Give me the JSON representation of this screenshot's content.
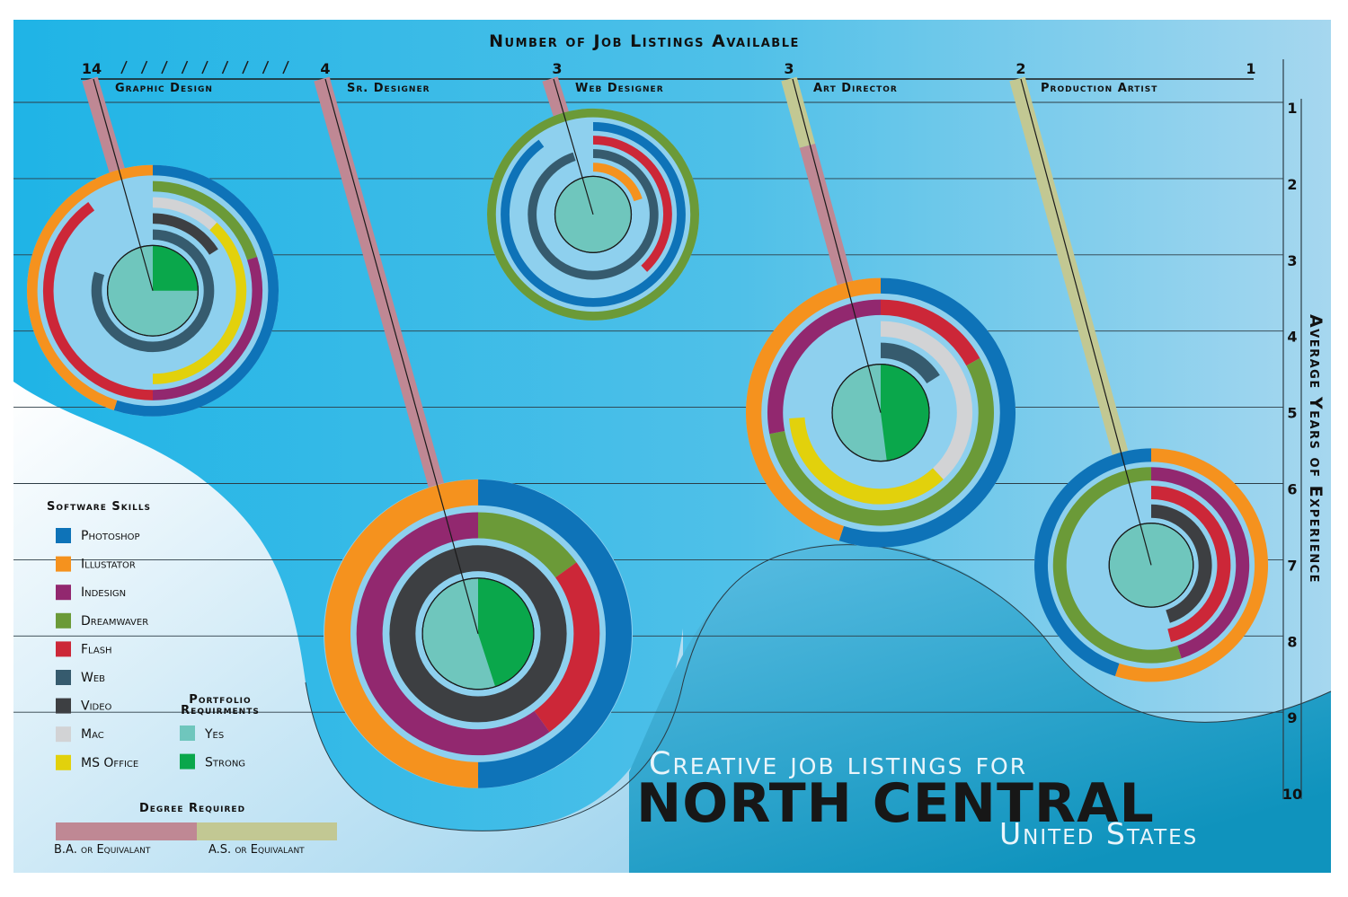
{
  "title": {
    "line1": "Creative job listings for",
    "line2": "NORTH CENTRAL",
    "line3": "United States"
  },
  "top_axis": {
    "label": "Number of Job Listings Available",
    "ticks": [
      "14",
      "4",
      "3",
      "3",
      "2",
      "1"
    ]
  },
  "right_axis": {
    "label": "Average Years of Experience",
    "ticks": [
      "1",
      "2",
      "3",
      "4",
      "5",
      "6",
      "7",
      "8",
      "9",
      "10"
    ]
  },
  "legend": {
    "software_title": "Software Skills",
    "software": [
      {
        "key": "photoshop",
        "label": "Photoshop",
        "color": "#0e73b8"
      },
      {
        "key": "illustrator",
        "label": "Illustator",
        "color": "#f5921e"
      },
      {
        "key": "indesign",
        "label": "Indesign",
        "color": "#92286f"
      },
      {
        "key": "dreamweaver",
        "label": "Dreamwaver",
        "color": "#6b9a38"
      },
      {
        "key": "flash",
        "label": "Flash",
        "color": "#cc2738"
      },
      {
        "key": "web",
        "label": "Web",
        "color": "#365b6e"
      },
      {
        "key": "video",
        "label": "Video",
        "color": "#3d3f42"
      },
      {
        "key": "mac",
        "label": "Mac",
        "color": "#d2d3d5"
      },
      {
        "key": "msoffice",
        "label": "MS Office",
        "color": "#e2d10c"
      }
    ],
    "portfolio_title_1": "Portfolio",
    "portfolio_title_2": "Requirments",
    "portfolio": [
      {
        "key": "yes",
        "label": "Yes",
        "color": "#6fc6bd"
      },
      {
        "key": "strong",
        "label": "Strong",
        "color": "#0aa74b"
      }
    ],
    "degree_title": "Degree Required",
    "degree": [
      {
        "key": "ba",
        "label": "B.A. or Equivalant",
        "color": "#bf8894"
      },
      {
        "key": "as",
        "label": "A.S. or Equivalant",
        "color": "#c2c893"
      }
    ]
  },
  "chart_data": {
    "type": "radial-bar",
    "title": "Creative job listings for NORTH CENTRAL United States",
    "xlabel": "Number of Job Listings Available",
    "ylabel": "Average Years of Experience",
    "ylim": [
      1,
      10
    ],
    "jobs": [
      {
        "name": "Graphic Design",
        "listings": 14,
        "avg_years_experience": 3.4,
        "degree": [
          {
            "type": "ba",
            "share": 0.45
          },
          {
            "type": "as",
            "share": 0.55
          }
        ],
        "portfolio": {
          "yes": 0.75,
          "strong": 0.25
        },
        "rings": [
          [
            {
              "skill": "photoshop",
              "share": 0.55
            },
            {
              "skill": "illustrator",
              "share": 0.45
            }
          ],
          [
            {
              "skill": "dreamweaver",
              "share": 0.2
            },
            {
              "skill": "indesign",
              "share": 0.3
            },
            {
              "skill": "flash",
              "share": 0.4
            }
          ],
          [
            {
              "skill": "mac",
              "share": 0.12
            },
            {
              "skill": "msoffice",
              "share": 0.38
            }
          ],
          [
            {
              "skill": "video",
              "share": 0.16
            }
          ],
          [
            {
              "skill": "web",
              "share": 0.8
            }
          ]
        ]
      },
      {
        "name": "Sr. Designer",
        "listings": 4,
        "avg_years_experience": 7.9,
        "degree": [
          {
            "type": "ba",
            "share": 1.0
          }
        ],
        "portfolio": {
          "yes": 0.55,
          "strong": 0.45
        },
        "rings": [
          [
            {
              "skill": "photoshop",
              "share": 0.5
            },
            {
              "skill": "illustrator",
              "share": 0.5
            }
          ],
          [
            {
              "skill": "dreamweaver",
              "share": 0.15
            },
            {
              "skill": "flash",
              "share": 0.25
            },
            {
              "skill": "indesign",
              "share": 0.6
            }
          ],
          [
            {
              "skill": "video",
              "share": 1.0
            }
          ]
        ]
      },
      {
        "name": "Web Designer",
        "listings": 3,
        "avg_years_experience": 2.4,
        "degree": [
          {
            "type": "ba",
            "share": 0.4
          },
          {
            "type": "as",
            "share": 0.6
          }
        ],
        "portfolio": {
          "yes": 1.0,
          "strong": 0
        },
        "rings": [
          [
            {
              "skill": "dreamweaver",
              "share": 1.0
            }
          ],
          [
            {
              "skill": "photoshop",
              "share": 0.9
            }
          ],
          [
            {
              "skill": "flash",
              "share": 0.38
            }
          ],
          [
            {
              "skill": "web",
              "share": 0.95
            }
          ],
          [
            {
              "skill": "illustrator",
              "share": 0.2
            }
          ]
        ]
      },
      {
        "name": "Art Director",
        "listings": 3,
        "avg_years_experience": 5.0,
        "degree": [
          {
            "type": "as",
            "share": 0.2
          },
          {
            "type": "ba",
            "share": 0.8
          }
        ],
        "portfolio": {
          "yes": 0.52,
          "strong": 0.48
        },
        "rings": [
          [
            {
              "skill": "photoshop",
              "share": 0.55
            },
            {
              "skill": "illustrator",
              "share": 0.45
            }
          ],
          [
            {
              "skill": "flash",
              "share": 0.17
            },
            {
              "skill": "dreamweaver",
              "share": 0.55
            },
            {
              "skill": "indesign",
              "share": 0.28
            }
          ],
          [
            {
              "skill": "mac",
              "share": 0.38
            },
            {
              "skill": "msoffice",
              "share": 0.36
            }
          ],
          [
            {
              "skill": "web",
              "share": 0.16
            }
          ]
        ]
      },
      {
        "name": "Production Artist",
        "listings": 2,
        "avg_years_experience": 7.0,
        "degree": [
          {
            "type": "as",
            "share": 1.0
          }
        ],
        "portfolio": {
          "yes": 1.0,
          "strong": 0
        },
        "rings": [
          [
            {
              "skill": "illustrator",
              "share": 0.55
            },
            {
              "skill": "photoshop",
              "share": 0.45
            }
          ],
          [
            {
              "skill": "indesign",
              "share": 0.45
            },
            {
              "skill": "dreamweaver",
              "share": 0.55
            }
          ],
          [
            {
              "skill": "flash",
              "share": 0.46
            }
          ],
          [
            {
              "skill": "video",
              "share": 0.45
            }
          ]
        ]
      }
    ]
  }
}
